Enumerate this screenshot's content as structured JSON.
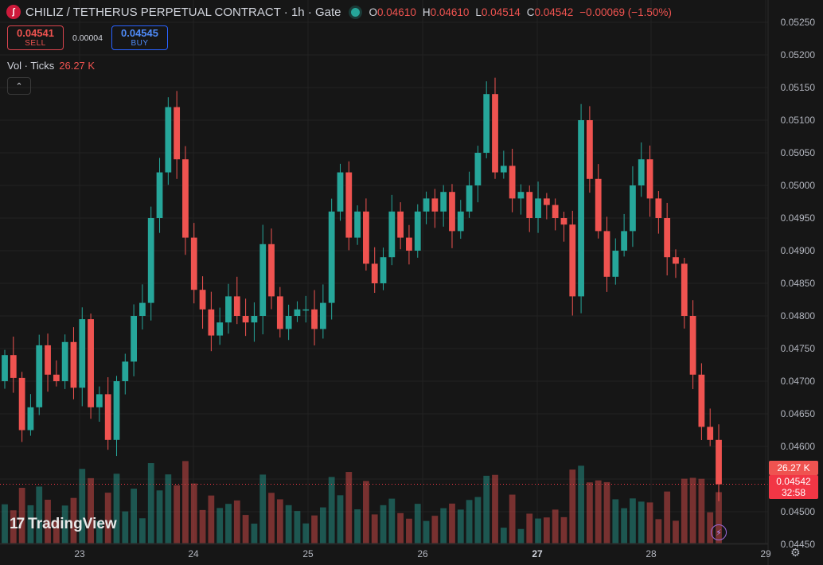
{
  "legend": {
    "symbol_glyph": "ʃ",
    "title": "CHILIZ / TETHERUS PERPETUAL CONTRACT",
    "interval": "1h",
    "exchange": "Gate",
    "sep": "·",
    "open_k": "O",
    "open_v": "0.04610",
    "high_k": "H",
    "high_v": "0.04610",
    "low_k": "L",
    "low_v": "0.04514",
    "close_k": "C",
    "close_v": "0.04542",
    "change": "−0.00069 (−1.50%)"
  },
  "trade": {
    "sell_price": "0.04541",
    "sell_label": "SELL",
    "spread": "0.00004",
    "buy_price": "0.04545",
    "buy_label": "BUY"
  },
  "volume": {
    "label": "Vol · Ticks",
    "value": "26.27 K"
  },
  "collapse_glyph": "⌃",
  "price_axis": [
    "0.05250",
    "0.05200",
    "0.05150",
    "0.05100",
    "0.05050",
    "0.05000",
    "0.04950",
    "0.04900",
    "0.04850",
    "0.04800",
    "0.04750",
    "0.04700",
    "0.04650",
    "0.04600",
    "0.04550",
    "0.04500",
    "0.04450"
  ],
  "time_axis": [
    "23",
    "24",
    "25",
    "26",
    "27",
    "28",
    "29"
  ],
  "tags": {
    "volume": "26.27 K",
    "price": "0.04542",
    "countdown": "32:58"
  },
  "brand": {
    "mark": "17",
    "name": "TradingView"
  },
  "colors": {
    "up": "#26a69a",
    "down": "#ef5350",
    "bg": "#161616",
    "grid": "#222222"
  },
  "chart_data": {
    "type": "candlestick",
    "title": "CHILIZ / TETHERUS PERPETUAL CONTRACT",
    "interval": "1h",
    "x_axis_ticks": [
      "23",
      "24",
      "25",
      "26",
      "27",
      "28",
      "29"
    ],
    "ylim": [
      0.0444,
      0.0527
    ],
    "close_path": [
      [
        "23",
        0.0474
      ],
      [
        "23",
        0.04705
      ],
      [
        "23",
        0.04625
      ],
      [
        "23",
        0.0466
      ],
      [
        "23",
        0.04755
      ],
      [
        "23",
        0.0471
      ],
      [
        "23",
        0.047
      ],
      [
        "23",
        0.0476
      ],
      [
        "23",
        0.0469
      ],
      [
        "23",
        0.04795
      ],
      [
        "23",
        0.0466
      ],
      [
        "23",
        0.0468
      ],
      [
        "23",
        0.0461
      ],
      [
        "23",
        0.047
      ],
      [
        "23",
        0.0473
      ],
      [
        "23",
        0.048
      ],
      [
        "24",
        0.0482
      ],
      [
        "24",
        0.0495
      ],
      [
        "24",
        0.0502
      ],
      [
        "24",
        0.0512
      ],
      [
        "24",
        0.0504
      ],
      [
        "24",
        0.0492
      ],
      [
        "24",
        0.0484
      ],
      [
        "24",
        0.0481
      ],
      [
        "24",
        0.0477
      ],
      [
        "24",
        0.0479
      ],
      [
        "24",
        0.0483
      ],
      [
        "24",
        0.048
      ],
      [
        "24",
        0.0479
      ],
      [
        "24",
        0.048
      ],
      [
        "24",
        0.0491
      ],
      [
        "24",
        0.0483
      ],
      [
        "24",
        0.0478
      ],
      [
        "24",
        0.048
      ],
      [
        "24",
        0.0481
      ],
      [
        "24",
        0.0481
      ],
      [
        "24",
        0.0478
      ],
      [
        "24",
        0.0482
      ],
      [
        "25",
        0.0496
      ],
      [
        "25",
        0.0502
      ],
      [
        "25",
        0.0492
      ],
      [
        "25",
        0.0496
      ],
      [
        "25",
        0.0488
      ],
      [
        "25",
        0.0485
      ],
      [
        "25",
        0.0489
      ],
      [
        "25",
        0.0496
      ],
      [
        "25",
        0.0492
      ],
      [
        "25",
        0.049
      ],
      [
        "25",
        0.0496
      ],
      [
        "25",
        0.0498
      ],
      [
        "25",
        0.0496
      ],
      [
        "25",
        0.0499
      ],
      [
        "25",
        0.0493
      ],
      [
        "26",
        0.0496
      ],
      [
        "26",
        0.05
      ],
      [
        "26",
        0.0505
      ],
      [
        "26",
        0.0514
      ],
      [
        "26",
        0.0502
      ],
      [
        "26",
        0.0503
      ],
      [
        "26",
        0.0498
      ],
      [
        "26",
        0.0499
      ],
      [
        "26",
        0.0495
      ],
      [
        "26",
        0.0498
      ],
      [
        "26",
        0.0497
      ],
      [
        "26",
        0.0495
      ],
      [
        "27",
        0.0494
      ],
      [
        "27",
        0.0483
      ],
      [
        "27",
        0.051
      ],
      [
        "27",
        0.0501
      ],
      [
        "27",
        0.0493
      ],
      [
        "27",
        0.0486
      ],
      [
        "27",
        0.049
      ],
      [
        "27",
        0.0493
      ],
      [
        "27",
        0.05
      ],
      [
        "27",
        0.0504
      ],
      [
        "27",
        0.0498
      ],
      [
        "27",
        0.0495
      ],
      [
        "27",
        0.0489
      ],
      [
        "28",
        0.0488
      ],
      [
        "28",
        0.048
      ],
      [
        "28",
        0.0471
      ],
      [
        "28",
        0.0463
      ],
      [
        "28",
        0.0461
      ],
      [
        "28",
        0.04542
      ]
    ],
    "current_price": 0.04542,
    "current_volume": "26.27 K",
    "volume_series_name": "Vol · Ticks",
    "grid": true,
    "up_color": "#26a69a",
    "down_color": "#ef5350"
  }
}
